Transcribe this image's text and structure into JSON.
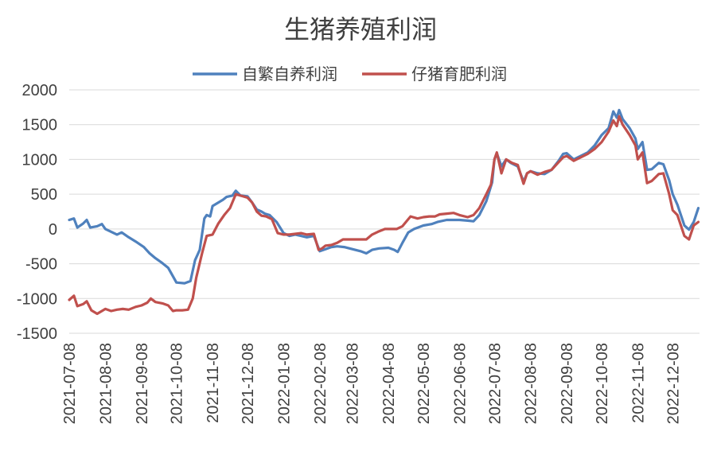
{
  "chart_data": {
    "type": "line",
    "title": "生猪养殖利润",
    "xlabel": "",
    "ylabel": "",
    "x_tick_labels": [
      "2021-07-08",
      "2021-08-08",
      "2021-09-08",
      "2021-10-08",
      "2021-11-08",
      "2021-12-08",
      "2022-01-08",
      "2022-02-08",
      "2022-03-08",
      "2022-04-08",
      "2022-05-08",
      "2022-06-08",
      "2022-07-08",
      "2022-08-08",
      "2022-09-08",
      "2022-10-08",
      "2022-11-08",
      "2022-12-08"
    ],
    "y_ticks": [
      2000,
      1500,
      1000,
      500,
      0,
      -500,
      -1000,
      -1500
    ],
    "ylim": [
      -1500,
      2000
    ],
    "xlim": [
      "2021-07-08",
      "2022-12-31"
    ],
    "grid": "horizontal",
    "legend_position": "top",
    "series": [
      {
        "name": "自繁自养利润",
        "color": "#4f81bd",
        "points": [
          [
            "2021-07-08",
            130
          ],
          [
            "2021-07-12",
            150
          ],
          [
            "2021-07-15",
            20
          ],
          [
            "2021-07-20",
            80
          ],
          [
            "2021-07-23",
            130
          ],
          [
            "2021-07-26",
            20
          ],
          [
            "2021-08-01",
            40
          ],
          [
            "2021-08-05",
            70
          ],
          [
            "2021-08-08",
            0
          ],
          [
            "2021-08-13",
            -40
          ],
          [
            "2021-08-18",
            -80
          ],
          [
            "2021-08-22",
            -50
          ],
          [
            "2021-08-28",
            -120
          ],
          [
            "2021-09-03",
            -180
          ],
          [
            "2021-09-10",
            -260
          ],
          [
            "2021-09-15",
            -350
          ],
          [
            "2021-09-20",
            -420
          ],
          [
            "2021-09-25",
            -480
          ],
          [
            "2021-10-01",
            -560
          ],
          [
            "2021-10-05",
            -680
          ],
          [
            "2021-10-08",
            -770
          ],
          [
            "2021-10-15",
            -780
          ],
          [
            "2021-10-20",
            -750
          ],
          [
            "2021-10-24",
            -450
          ],
          [
            "2021-10-28",
            -300
          ],
          [
            "2021-11-01",
            150
          ],
          [
            "2021-11-03",
            200
          ],
          [
            "2021-11-06",
            180
          ],
          [
            "2021-11-08",
            330
          ],
          [
            "2021-11-13",
            380
          ],
          [
            "2021-11-17",
            420
          ],
          [
            "2021-11-20",
            460
          ],
          [
            "2021-11-25",
            480
          ],
          [
            "2021-11-28",
            550
          ],
          [
            "2021-12-02",
            480
          ],
          [
            "2021-12-08",
            470
          ],
          [
            "2021-12-12",
            380
          ],
          [
            "2021-12-16",
            280
          ],
          [
            "2021-12-20",
            250
          ],
          [
            "2021-12-23",
            220
          ],
          [
            "2021-12-27",
            200
          ],
          [
            "2022-01-02",
            100
          ],
          [
            "2022-01-08",
            -60
          ],
          [
            "2022-01-13",
            -100
          ],
          [
            "2022-01-18",
            -80
          ],
          [
            "2022-01-23",
            -100
          ],
          [
            "2022-01-28",
            -120
          ],
          [
            "2022-02-03",
            -100
          ],
          [
            "2022-02-08",
            -320
          ],
          [
            "2022-02-13",
            -290
          ],
          [
            "2022-02-18",
            -260
          ],
          [
            "2022-02-23",
            -250
          ],
          [
            "2022-03-01",
            -260
          ],
          [
            "2022-03-08",
            -290
          ],
          [
            "2022-03-15",
            -320
          ],
          [
            "2022-03-20",
            -350
          ],
          [
            "2022-03-25",
            -300
          ],
          [
            "2022-03-31",
            -280
          ],
          [
            "2022-04-08",
            -270
          ],
          [
            "2022-04-13",
            -300
          ],
          [
            "2022-04-16",
            -330
          ],
          [
            "2022-04-20",
            -200
          ],
          [
            "2022-04-25",
            -50
          ],
          [
            "2022-04-30",
            0
          ],
          [
            "2022-05-08",
            50
          ],
          [
            "2022-05-15",
            70
          ],
          [
            "2022-05-20",
            100
          ],
          [
            "2022-05-28",
            130
          ],
          [
            "2022-06-08",
            130
          ],
          [
            "2022-06-15",
            120
          ],
          [
            "2022-06-20",
            110
          ],
          [
            "2022-06-25",
            200
          ],
          [
            "2022-07-01",
            400
          ],
          [
            "2022-07-06",
            670
          ],
          [
            "2022-07-08",
            1000
          ],
          [
            "2022-07-10",
            1090
          ],
          [
            "2022-07-14",
            900
          ],
          [
            "2022-07-18",
            1000
          ],
          [
            "2022-07-22",
            950
          ],
          [
            "2022-07-28",
            900
          ],
          [
            "2022-08-02",
            680
          ],
          [
            "2022-08-05",
            800
          ],
          [
            "2022-08-08",
            830
          ],
          [
            "2022-08-14",
            800
          ],
          [
            "2022-08-20",
            790
          ],
          [
            "2022-08-26",
            850
          ],
          [
            "2022-09-01",
            980
          ],
          [
            "2022-09-05",
            1080
          ],
          [
            "2022-09-08",
            1090
          ],
          [
            "2022-09-14",
            1000
          ],
          [
            "2022-09-20",
            1050
          ],
          [
            "2022-09-26",
            1100
          ],
          [
            "2022-10-02",
            1200
          ],
          [
            "2022-10-08",
            1350
          ],
          [
            "2022-10-14",
            1450
          ],
          [
            "2022-10-18",
            1690
          ],
          [
            "2022-10-21",
            1600
          ],
          [
            "2022-10-23",
            1710
          ],
          [
            "2022-10-26",
            1580
          ],
          [
            "2022-11-01",
            1450
          ],
          [
            "2022-11-06",
            1300
          ],
          [
            "2022-11-08",
            1150
          ],
          [
            "2022-11-12",
            1250
          ],
          [
            "2022-11-16",
            850
          ],
          [
            "2022-11-20",
            860
          ],
          [
            "2022-11-26",
            950
          ],
          [
            "2022-11-30",
            930
          ],
          [
            "2022-12-05",
            700
          ],
          [
            "2022-12-08",
            500
          ],
          [
            "2022-12-12",
            350
          ],
          [
            "2022-12-18",
            50
          ],
          [
            "2022-12-22",
            -10
          ],
          [
            "2022-12-26",
            100
          ],
          [
            "2022-12-30",
            300
          ]
        ]
      },
      {
        "name": "仔猪育肥利润",
        "color": "#c0504d",
        "points": [
          [
            "2021-07-08",
            -1020
          ],
          [
            "2021-07-12",
            -960
          ],
          [
            "2021-07-15",
            -1110
          ],
          [
            "2021-07-20",
            -1080
          ],
          [
            "2021-07-23",
            -1040
          ],
          [
            "2021-07-27",
            -1170
          ],
          [
            "2021-08-01",
            -1220
          ],
          [
            "2021-08-05",
            -1180
          ],
          [
            "2021-08-08",
            -1150
          ],
          [
            "2021-08-13",
            -1180
          ],
          [
            "2021-08-18",
            -1160
          ],
          [
            "2021-08-23",
            -1150
          ],
          [
            "2021-08-28",
            -1160
          ],
          [
            "2021-09-03",
            -1120
          ],
          [
            "2021-09-08",
            -1100
          ],
          [
            "2021-09-13",
            -1060
          ],
          [
            "2021-09-16",
            -1000
          ],
          [
            "2021-09-20",
            -1050
          ],
          [
            "2021-09-26",
            -1070
          ],
          [
            "2021-10-01",
            -1100
          ],
          [
            "2021-10-05",
            -1180
          ],
          [
            "2021-10-08",
            -1170
          ],
          [
            "2021-10-13",
            -1170
          ],
          [
            "2021-10-18",
            -1160
          ],
          [
            "2021-10-22",
            -1000
          ],
          [
            "2021-10-25",
            -700
          ],
          [
            "2021-10-30",
            -350
          ],
          [
            "2021-11-03",
            -100
          ],
          [
            "2021-11-08",
            -80
          ],
          [
            "2021-11-13",
            80
          ],
          [
            "2021-11-18",
            200
          ],
          [
            "2021-11-23",
            300
          ],
          [
            "2021-11-28",
            500
          ],
          [
            "2021-12-02",
            480
          ],
          [
            "2021-12-08",
            450
          ],
          [
            "2021-12-12",
            380
          ],
          [
            "2021-12-16",
            250
          ],
          [
            "2021-12-20",
            190
          ],
          [
            "2021-12-24",
            180
          ],
          [
            "2021-12-29",
            140
          ],
          [
            "2022-01-03",
            -60
          ],
          [
            "2022-01-08",
            -80
          ],
          [
            "2022-01-13",
            -80
          ],
          [
            "2022-01-18",
            -70
          ],
          [
            "2022-01-23",
            -60
          ],
          [
            "2022-01-28",
            -80
          ],
          [
            "2022-02-03",
            -70
          ],
          [
            "2022-02-07",
            -300
          ],
          [
            "2022-02-10",
            -280
          ],
          [
            "2022-02-13",
            -240
          ],
          [
            "2022-02-18",
            -230
          ],
          [
            "2022-02-23",
            -200
          ],
          [
            "2022-02-28",
            -150
          ],
          [
            "2022-03-08",
            -150
          ],
          [
            "2022-03-15",
            -150
          ],
          [
            "2022-03-20",
            -150
          ],
          [
            "2022-03-25",
            -80
          ],
          [
            "2022-03-30",
            -40
          ],
          [
            "2022-04-05",
            0
          ],
          [
            "2022-04-08",
            0
          ],
          [
            "2022-04-15",
            0
          ],
          [
            "2022-04-20",
            40
          ],
          [
            "2022-04-24",
            120
          ],
          [
            "2022-04-27",
            180
          ],
          [
            "2022-05-03",
            150
          ],
          [
            "2022-05-08",
            170
          ],
          [
            "2022-05-13",
            180
          ],
          [
            "2022-05-18",
            180
          ],
          [
            "2022-05-22",
            210
          ],
          [
            "2022-05-28",
            220
          ],
          [
            "2022-06-03",
            230
          ],
          [
            "2022-06-08",
            200
          ],
          [
            "2022-06-15",
            170
          ],
          [
            "2022-06-20",
            200
          ],
          [
            "2022-06-25",
            300
          ],
          [
            "2022-07-01",
            500
          ],
          [
            "2022-07-05",
            640
          ],
          [
            "2022-07-08",
            1000
          ],
          [
            "2022-07-10",
            1100
          ],
          [
            "2022-07-14",
            800
          ],
          [
            "2022-07-18",
            1000
          ],
          [
            "2022-07-23",
            950
          ],
          [
            "2022-07-28",
            920
          ],
          [
            "2022-08-02",
            650
          ],
          [
            "2022-08-05",
            800
          ],
          [
            "2022-08-08",
            830
          ],
          [
            "2022-08-14",
            780
          ],
          [
            "2022-08-20",
            820
          ],
          [
            "2022-08-26",
            850
          ],
          [
            "2022-09-01",
            960
          ],
          [
            "2022-09-05",
            1030
          ],
          [
            "2022-09-08",
            1050
          ],
          [
            "2022-09-14",
            980
          ],
          [
            "2022-09-20",
            1030
          ],
          [
            "2022-09-26",
            1080
          ],
          [
            "2022-10-02",
            1150
          ],
          [
            "2022-10-08",
            1250
          ],
          [
            "2022-10-14",
            1400
          ],
          [
            "2022-10-18",
            1560
          ],
          [
            "2022-10-21",
            1480
          ],
          [
            "2022-10-23",
            1620
          ],
          [
            "2022-10-26",
            1500
          ],
          [
            "2022-11-01",
            1350
          ],
          [
            "2022-11-06",
            1200
          ],
          [
            "2022-11-08",
            1000
          ],
          [
            "2022-11-12",
            1100
          ],
          [
            "2022-11-16",
            660
          ],
          [
            "2022-11-20",
            690
          ],
          [
            "2022-11-26",
            790
          ],
          [
            "2022-11-30",
            800
          ],
          [
            "2022-12-05",
            500
          ],
          [
            "2022-12-08",
            270
          ],
          [
            "2022-12-12",
            200
          ],
          [
            "2022-12-18",
            -100
          ],
          [
            "2022-12-22",
            -150
          ],
          [
            "2022-12-26",
            50
          ],
          [
            "2022-12-30",
            100
          ]
        ]
      }
    ]
  }
}
